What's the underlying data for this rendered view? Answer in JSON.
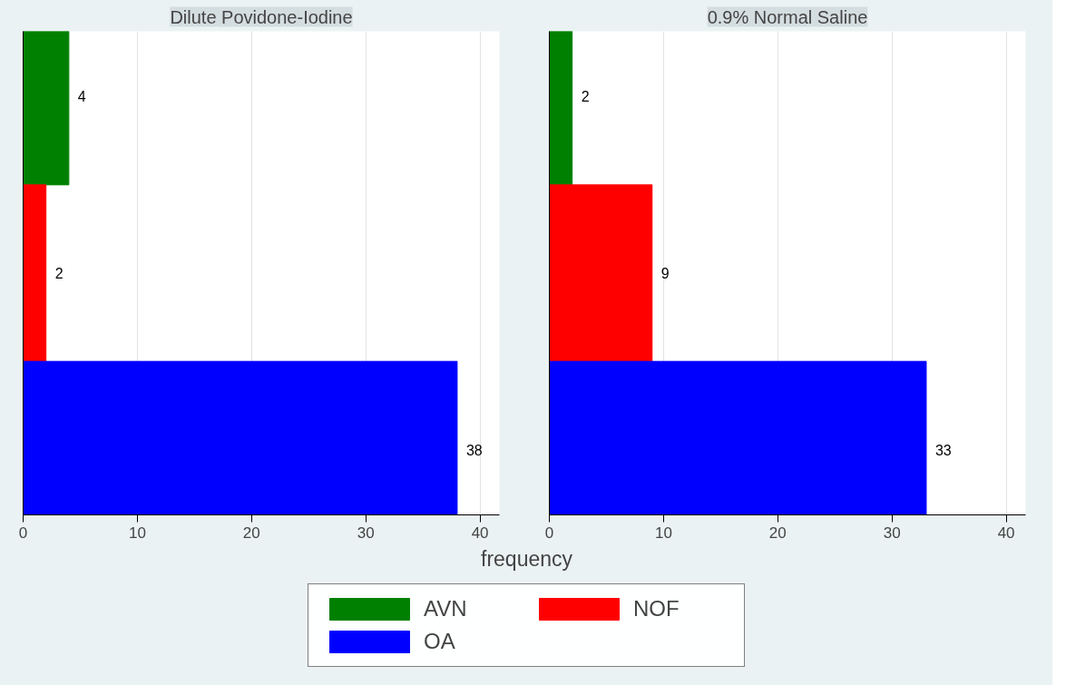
{
  "chart_data": [
    {
      "type": "bar",
      "orientation": "horizontal",
      "title": "Dilute Povidone-Iodine",
      "xlabel": "frequency",
      "categories": [
        null,
        null,
        null
      ],
      "series": [
        {
          "name": "AVN",
          "color": "#008000",
          "values": [
            4,
            null,
            null
          ]
        },
        {
          "name": "NOF",
          "color": "#ff0000",
          "values": [
            null,
            2,
            null
          ]
        },
        {
          "name": "OA",
          "color": "#0000ff",
          "values": [
            null,
            null,
            38
          ]
        }
      ],
      "xlim": [
        0,
        41.7
      ],
      "xticks": [
        0,
        10,
        20,
        30,
        40
      ],
      "grid": "x",
      "data_labels": true,
      "legend": "bottom"
    },
    {
      "type": "bar",
      "orientation": "horizontal",
      "title": "0.9% Normal Saline",
      "categories": [
        null,
        null,
        null
      ],
      "series": [
        {
          "color": "#008000",
          "values": [
            2,
            null,
            null
          ]
        },
        {
          "color": "#ff0000",
          "values": [
            null,
            9,
            null
          ]
        },
        {
          "color": "#0000ff",
          "values": [
            null,
            null,
            33
          ]
        }
      ],
      "xlim": [
        0,
        41.7
      ],
      "xticks": [
        0,
        10,
        20,
        30,
        40
      ],
      "grid": "x",
      "data_labels": true
    }
  ]
}
